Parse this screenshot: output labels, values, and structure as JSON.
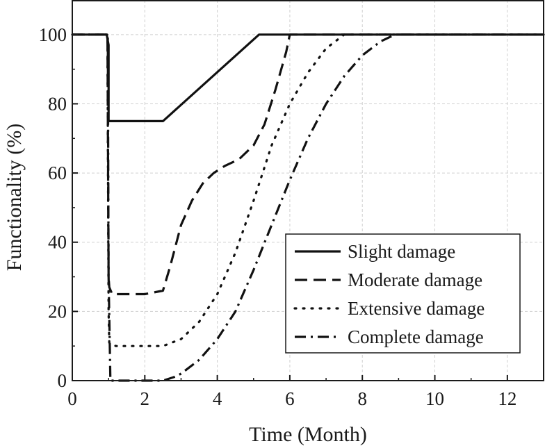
{
  "chart_data": {
    "type": "line",
    "title": "",
    "xlabel": "Time (Month)",
    "ylabel": "Functionality (%)",
    "xlim": [
      0,
      13
    ],
    "ylim": [
      0,
      110
    ],
    "xticks": [
      0,
      2,
      4,
      6,
      8,
      10,
      12
    ],
    "yticks": [
      0,
      20,
      40,
      60,
      80,
      100
    ],
    "grid": true,
    "legend_position": "lower-right",
    "series": [
      {
        "name": "Slight damage",
        "style": "solid",
        "color": "#111111",
        "x": [
          0,
          0.95,
          1.0,
          1.0,
          2.5,
          5.15,
          13
        ],
        "y": [
          100,
          100,
          97,
          75,
          75,
          100,
          100
        ]
      },
      {
        "name": "Moderate damage",
        "style": "dashed",
        "color": "#111111",
        "x": [
          0,
          0.97,
          1.0,
          1.02,
          1.1,
          1.5,
          2.0,
          2.5,
          2.7,
          3.0,
          3.3,
          3.6,
          3.9,
          4.2,
          4.6,
          5.0,
          5.3,
          5.6,
          5.9,
          6.0,
          13
        ],
        "y": [
          100,
          100,
          30,
          27,
          25,
          25,
          25,
          26,
          33,
          45,
          52,
          57,
          60,
          62,
          64,
          68,
          74,
          84,
          95,
          100,
          100
        ]
      },
      {
        "name": "Extensive damage",
        "style": "dotted",
        "color": "#111111",
        "x": [
          0,
          0.97,
          1.0,
          1.02,
          1.2,
          1.5,
          2.0,
          2.5,
          3.0,
          3.5,
          4.0,
          4.5,
          5.0,
          5.5,
          6.0,
          6.5,
          7.0,
          7.5,
          13
        ],
        "y": [
          100,
          100,
          20,
          11,
          10,
          10,
          10,
          10,
          12,
          17,
          25,
          37,
          52,
          68,
          80,
          89,
          96,
          100,
          100
        ]
      },
      {
        "name": "Complete damage",
        "style": "dash-dot",
        "color": "#111111",
        "x": [
          0,
          0.98,
          1.0,
          1.05,
          1.5,
          2.0,
          2.5,
          2.8,
          3.0,
          3.5,
          4.0,
          4.5,
          5.0,
          5.5,
          6.0,
          6.5,
          7.0,
          7.5,
          8.0,
          8.5,
          8.9,
          13
        ],
        "y": [
          100,
          100,
          30,
          0,
          0,
          0,
          0,
          1,
          2,
          6,
          12,
          20,
          32,
          45,
          58,
          70,
          80,
          88,
          94,
          98,
          100,
          100
        ]
      }
    ]
  }
}
